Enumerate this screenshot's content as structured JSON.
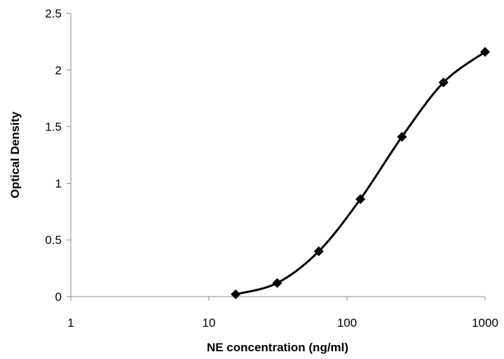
{
  "chart_data": {
    "type": "scatter",
    "xlabel": "NE concentration (ng/ml)",
    "ylabel": "Optical Density",
    "xscale": "log",
    "xlim": [
      1,
      1000
    ],
    "ylim": [
      0,
      2.5
    ],
    "x_ticks": [
      "1",
      "10",
      "100",
      "1000"
    ],
    "y_ticks": [
      "0",
      "0.5",
      "1",
      "1.5",
      "2",
      "2.5"
    ],
    "grid": false,
    "legend": "none",
    "line": "smooth",
    "marker": "diamond",
    "color": "#000000",
    "series": [
      {
        "x": [
          15.625,
          31.25,
          62.5,
          125,
          250,
          500,
          1000
        ],
        "y": [
          0.02,
          0.12,
          0.4,
          0.86,
          1.41,
          1.89,
          2.16
        ]
      }
    ]
  }
}
